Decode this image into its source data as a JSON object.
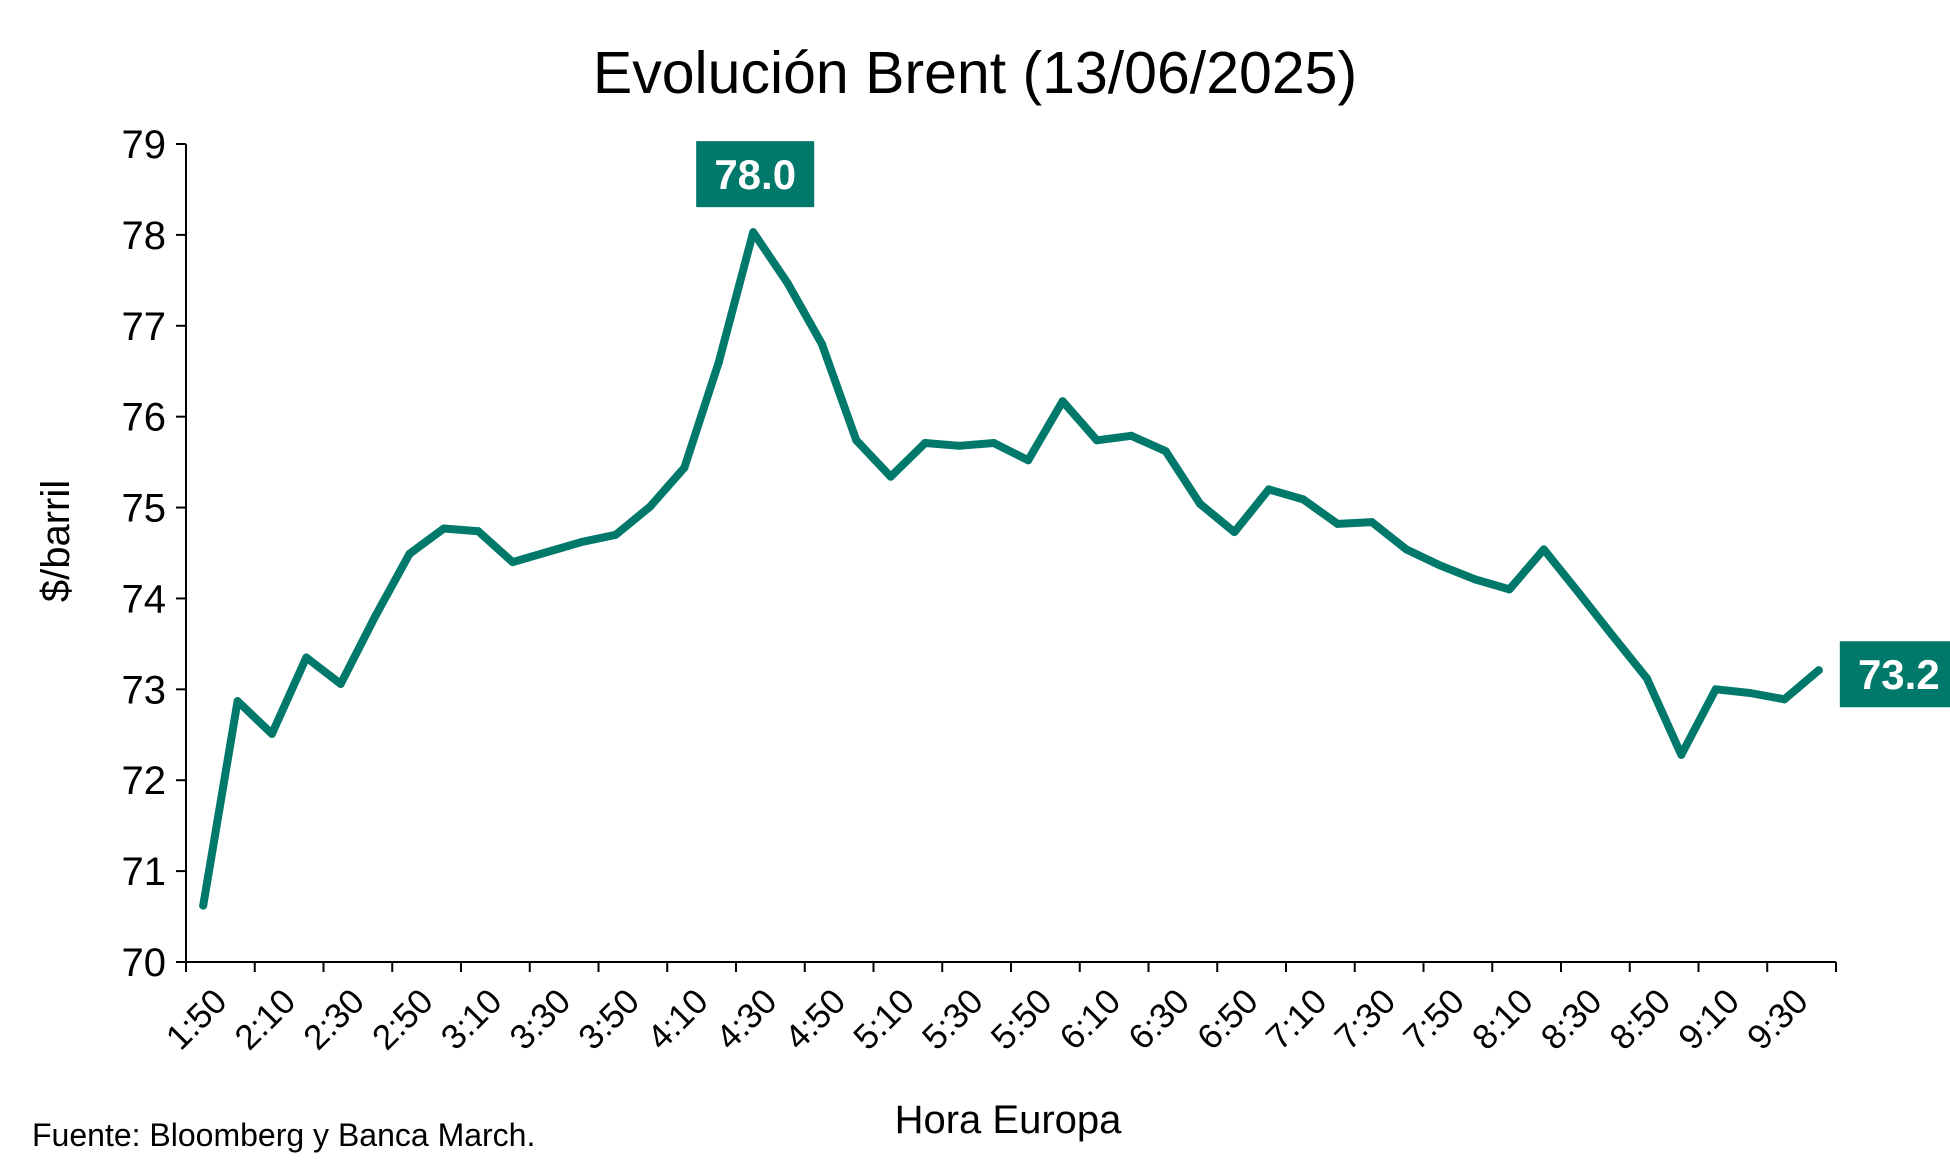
{
  "colors": {
    "series": "#00796B",
    "callout_bg": "#00796B",
    "callout_text": "#FFFFFF",
    "axis": "#000000",
    "text": "#000000"
  },
  "source": "Fuente: Bloomberg y Banca March.",
  "chart_data": {
    "type": "line",
    "title": "Evolución Brent (13/06/2025)",
    "xlabel": "Hora Europa",
    "ylabel": "$/barril",
    "ylim": [
      70,
      79
    ],
    "yticks": [
      70,
      71,
      72,
      73,
      74,
      75,
      76,
      77,
      78,
      79
    ],
    "xtick_labels": [
      "1:50",
      "2:10",
      "2:30",
      "2:50",
      "3:10",
      "3:30",
      "3:50",
      "4:10",
      "4:30",
      "4:50",
      "5:10",
      "5:30",
      "5:50",
      "6:10",
      "6:30",
      "6:50",
      "7:10",
      "7:30",
      "7:50",
      "8:10",
      "8:30",
      "8:50",
      "9:10",
      "9:30"
    ],
    "grid": false,
    "legend": "none",
    "x": [
      "1:50",
      "2:00",
      "2:10",
      "2:20",
      "2:30",
      "2:40",
      "2:50",
      "3:00",
      "3:10",
      "3:20",
      "3:30",
      "3:40",
      "3:50",
      "4:00",
      "4:10",
      "4:20",
      "4:30",
      "4:40",
      "4:50",
      "5:00",
      "5:10",
      "5:20",
      "5:30",
      "5:40",
      "5:50",
      "6:00",
      "6:10",
      "6:20",
      "6:30",
      "6:40",
      "6:50",
      "7:00",
      "7:10",
      "7:20",
      "7:30",
      "7:40",
      "7:50",
      "8:00",
      "8:10",
      "8:20",
      "8:30",
      "8:40",
      "8:50",
      "9:00",
      "9:10",
      "9:20",
      "9:30",
      "9:40"
    ],
    "series": [
      {
        "values": [
          70.62,
          72.87,
          72.51,
          73.35,
          73.06,
          73.8,
          74.49,
          74.77,
          74.74,
          74.4,
          74.51,
          74.62,
          74.7,
          75.01,
          75.44,
          76.6,
          78.03,
          77.47,
          76.8,
          75.74,
          75.34,
          75.71,
          75.68,
          75.71,
          75.52,
          76.17,
          75.74,
          75.79,
          75.62,
          75.04,
          74.73,
          75.2,
          75.09,
          74.82,
          74.84,
          74.54,
          74.36,
          74.21,
          74.1,
          74.54,
          74.07,
          73.59,
          73.12,
          72.28,
          73.0,
          72.96,
          72.89,
          73.21
        ]
      }
    ],
    "annotations": [
      {
        "label": "78.0",
        "x": "4:30",
        "y": 78.03,
        "position": "above"
      },
      {
        "label": "73.2",
        "x": "9:40",
        "y": 73.21,
        "position": "right"
      }
    ]
  }
}
